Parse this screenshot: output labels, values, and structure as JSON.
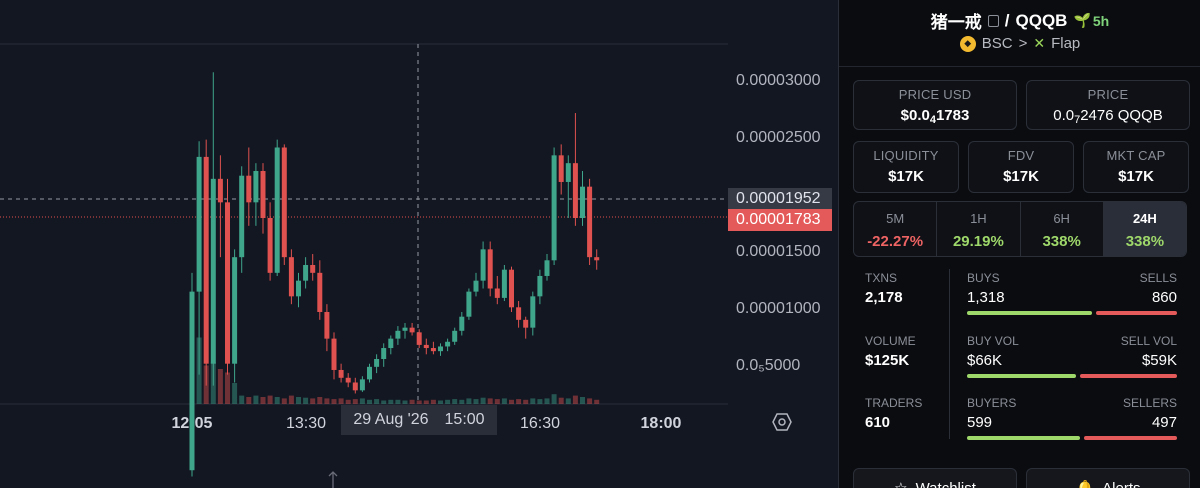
{
  "chart": {
    "price_axis": [
      "0.00003000",
      "0.00002500",
      "0.00001500",
      "0.00001000",
      "0.0₅5000"
    ],
    "time_axis": [
      {
        "label": "12:05",
        "bold": true
      },
      {
        "label": "13:30",
        "bold": false
      },
      {
        "label": "16:30",
        "bold": false
      },
      {
        "label": "18:00",
        "bold": true
      }
    ],
    "crosshair_date": "29 Aug '26",
    "crosshair_time": "15:00",
    "crosshair_price": "0.00001952",
    "last_price": "0.00001783",
    "up_color": "#3fa58b",
    "down_color": "#e0524f",
    "icons": {
      "settings": "settings-hexagon-icon",
      "scroll": "scroll-arrow-icon"
    }
  },
  "chart_data": {
    "type": "candlestick",
    "ylim": [
      2.5e-06,
      3.25e-05
    ],
    "candles": [
      [
        4.4e-06,
        1.7e-05,
        4e-06,
        1.58e-05
      ],
      [
        1.58e-05,
        2.54e-05,
        1.05e-05,
        2.44e-05
      ],
      [
        2.44e-05,
        2.55e-05,
        9.8e-06,
        1.12e-05
      ],
      [
        1.12e-05,
        2.98e-05,
        9.8e-06,
        2.3e-05
      ],
      [
        2.3e-05,
        2.45e-05,
        1.8e-05,
        2.15e-05
      ],
      [
        2.15e-05,
        2.3e-05,
        1.05e-05,
        1.12e-05
      ],
      [
        1.12e-05,
        1.85e-05,
        1e-05,
        1.8e-05
      ],
      [
        1.8e-05,
        2.38e-05,
        1.7e-05,
        2.32e-05
      ],
      [
        2.32e-05,
        2.5e-05,
        2e-05,
        2.15e-05
      ],
      [
        2.15e-05,
        2.4e-05,
        2e-05,
        2.35e-05
      ],
      [
        2.35e-05,
        2.4e-05,
        1.95e-05,
        2.05e-05
      ],
      [
        2.05e-05,
        2.15e-05,
        1.65e-05,
        1.7e-05
      ],
      [
        1.7e-05,
        2.55e-05,
        1.68e-05,
        2.5e-05
      ],
      [
        2.5e-05,
        2.52e-05,
        1.75e-05,
        1.8e-05
      ],
      [
        1.8e-05,
        1.85e-05,
        1.5e-05,
        1.55e-05
      ],
      [
        1.55e-05,
        1.7e-05,
        1.48e-05,
        1.65e-05
      ],
      [
        1.65e-05,
        1.8e-05,
        1.6e-05,
        1.75e-05
      ],
      [
        1.75e-05,
        1.82e-05,
        1.65e-05,
        1.7e-05
      ],
      [
        1.7e-05,
        1.78e-05,
        1.4e-05,
        1.45e-05
      ],
      [
        1.45e-05,
        1.5e-05,
        1.2e-05,
        1.28e-05
      ],
      [
        1.28e-05,
        1.32e-05,
        1.02e-05,
        1.08e-05
      ],
      [
        1.08e-05,
        1.12e-05,
        1e-05,
        1.03e-05
      ],
      [
        1.03e-05,
        1.06e-05,
        9.7e-06,
        1e-05
      ],
      [
        1e-05,
        1.03e-05,
        9.3e-06,
        9.5e-06
      ],
      [
        9.5e-06,
        1.04e-05,
        9.4e-06,
        1.02e-05
      ],
      [
        1.02e-05,
        1.12e-05,
        1e-05,
        1.1e-05
      ],
      [
        1.1e-05,
        1.18e-05,
        1.06e-05,
        1.15e-05
      ],
      [
        1.15e-05,
        1.25e-05,
        1.1e-05,
        1.22e-05
      ],
      [
        1.22e-05,
        1.3e-05,
        1.18e-05,
        1.28e-05
      ],
      [
        1.28e-05,
        1.36e-05,
        1.24e-05,
        1.33e-05
      ],
      [
        1.33e-05,
        1.38e-05,
        1.28e-05,
        1.35e-05
      ],
      [
        1.35e-05,
        1.38e-05,
        1.3e-05,
        1.32e-05
      ],
      [
        1.32e-05,
        1.34e-05,
        1.22e-05,
        1.24e-05
      ],
      [
        1.24e-05,
        1.28e-05,
        1.18e-05,
        1.22e-05
      ],
      [
        1.22e-05,
        1.26e-05,
        1.18e-05,
        1.2e-05
      ],
      [
        1.2e-05,
        1.25e-05,
        1.17e-05,
        1.23e-05
      ],
      [
        1.23e-05,
        1.28e-05,
        1.2e-05,
        1.26e-05
      ],
      [
        1.26e-05,
        1.35e-05,
        1.24e-05,
        1.33e-05
      ],
      [
        1.33e-05,
        1.45e-05,
        1.3e-05,
        1.42e-05
      ],
      [
        1.42e-05,
        1.6e-05,
        1.4e-05,
        1.58e-05
      ],
      [
        1.58e-05,
        1.7e-05,
        1.55e-05,
        1.65e-05
      ],
      [
        1.65e-05,
        1.9e-05,
        1.6e-05,
        1.85e-05
      ],
      [
        1.85e-05,
        1.9e-05,
        1.55e-05,
        1.6e-05
      ],
      [
        1.6e-05,
        1.68e-05,
        1.5e-05,
        1.54e-05
      ],
      [
        1.54e-05,
        1.75e-05,
        1.52e-05,
        1.72e-05
      ],
      [
        1.72e-05,
        1.74e-05,
        1.45e-05,
        1.48e-05
      ],
      [
        1.48e-05,
        1.52e-05,
        1.35e-05,
        1.4e-05
      ],
      [
        1.4e-05,
        1.42e-05,
        1.28e-05,
        1.35e-05
      ],
      [
        1.35e-05,
        1.58e-05,
        1.3e-05,
        1.55e-05
      ],
      [
        1.55e-05,
        1.72e-05,
        1.5e-05,
        1.68e-05
      ],
      [
        1.68e-05,
        1.82e-05,
        1.65e-05,
        1.78e-05
      ],
      [
        1.78e-05,
        2.5e-05,
        1.75e-05,
        2.45e-05
      ],
      [
        2.45e-05,
        2.52e-05,
        2.2e-05,
        2.28e-05
      ],
      [
        2.28e-05,
        2.45e-05,
        2.05e-05,
        2.4e-05
      ],
      [
        2.4e-05,
        2.72e-05,
        2e-05,
        2.05e-05
      ],
      [
        2.05e-05,
        2.35e-05,
        2e-05,
        2.25e-05
      ],
      [
        2.25e-05,
        2.3e-05,
        1.75e-05,
        1.8e-05
      ],
      [
        1.8e-05,
        1.85e-05,
        1.72e-05,
        1.78e-05
      ]
    ],
    "volumes": [
      1.0,
      0.95,
      0.55,
      0.6,
      0.5,
      0.45,
      0.3,
      0.12,
      0.1,
      0.12,
      0.1,
      0.12,
      0.1,
      0.08,
      0.12,
      0.1,
      0.09,
      0.08,
      0.1,
      0.08,
      0.07,
      0.08,
      0.06,
      0.07,
      0.08,
      0.06,
      0.07,
      0.05,
      0.06,
      0.06,
      0.05,
      0.06,
      0.05,
      0.05,
      0.06,
      0.05,
      0.06,
      0.07,
      0.06,
      0.08,
      0.07,
      0.09,
      0.08,
      0.07,
      0.08,
      0.06,
      0.07,
      0.06,
      0.08,
      0.07,
      0.08,
      0.14,
      0.09,
      0.08,
      0.12,
      0.1,
      0.08,
      0.06
    ]
  },
  "panel": {
    "token_name": "猪一戒",
    "slash": "/",
    "quote": "QQQB",
    "age": "5h",
    "chain": "BSC",
    "chevron": ">",
    "dex": "Flap",
    "price_usd": {
      "label": "PRICE USD",
      "pre": "$0.0",
      "sub": "4",
      "post": "1783"
    },
    "price": {
      "label": "PRICE",
      "pre": "0.0",
      "sub": "7",
      "post": "2476 QQQB"
    },
    "liquidity": {
      "label": "LIQUIDITY",
      "value": "$17K"
    },
    "fdv": {
      "label": "FDV",
      "value": "$17K"
    },
    "mkt_cap": {
      "label": "MKT CAP",
      "value": "$17K"
    },
    "timeframes": [
      {
        "label": "5M",
        "value": "-22.27%",
        "dir": "neg",
        "active": false
      },
      {
        "label": "1H",
        "value": "29.19%",
        "dir": "pos",
        "active": false
      },
      {
        "label": "6H",
        "value": "338%",
        "dir": "pos",
        "active": false
      },
      {
        "label": "24H",
        "value": "338%",
        "dir": "pos",
        "active": true
      }
    ],
    "txns": {
      "label": "TXNS",
      "value": "2,178"
    },
    "volume": {
      "label": "VOLUME",
      "value": "$125K"
    },
    "traders": {
      "label": "TRADERS",
      "value": "610"
    },
    "buys": {
      "label": "BUYS",
      "value": "1,318",
      "share": 0.605
    },
    "sells": {
      "label": "SELLS",
      "value": "860"
    },
    "buy_vol": {
      "label": "BUY VOL",
      "value": "$66K",
      "share": 0.528
    },
    "sell_vol": {
      "label": "SELL VOL",
      "value": "$59K"
    },
    "buyers": {
      "label": "BUYERS",
      "value": "599",
      "share": 0.547
    },
    "sellers": {
      "label": "SELLERS",
      "value": "497"
    },
    "watchlist_label": "Watchlist",
    "alerts_label": "Alerts"
  }
}
